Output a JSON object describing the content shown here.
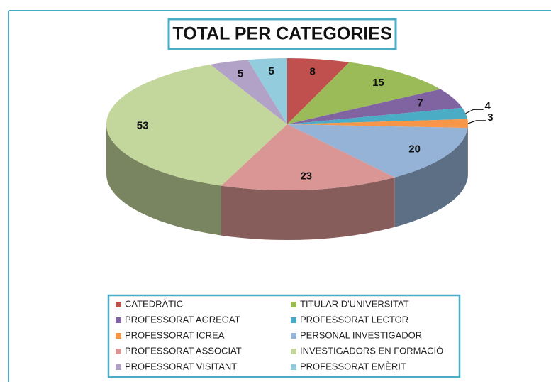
{
  "chart_data": {
    "type": "pie",
    "title": "TOTAL PER CATEGORIES",
    "categories": [
      "CATEDRÀTIC",
      "TITULAR D'UNIVERSITAT",
      "PROFESSORAT AGREGAT",
      "PROFESSORAT LECTOR",
      "PROFESSORAT ICREA",
      "PERSONAL INVESTIGADOR",
      "PROFESSORAT ASSOCIAT",
      "INVESTIGADORS EN FORMACIÓ",
      "PROFESSORAT VISITANT",
      "PROFESSORAT EMÈRIT"
    ],
    "values": [
      8,
      15,
      7,
      4,
      3,
      20,
      23,
      53,
      5,
      5
    ],
    "colors": [
      "#c0504d",
      "#9bbb59",
      "#8064a2",
      "#4bacc6",
      "#f79646",
      "#95b3d7",
      "#d99694",
      "#c3d69b",
      "#b3a2c7",
      "#93cddd"
    ],
    "legend": "bottom"
  }
}
